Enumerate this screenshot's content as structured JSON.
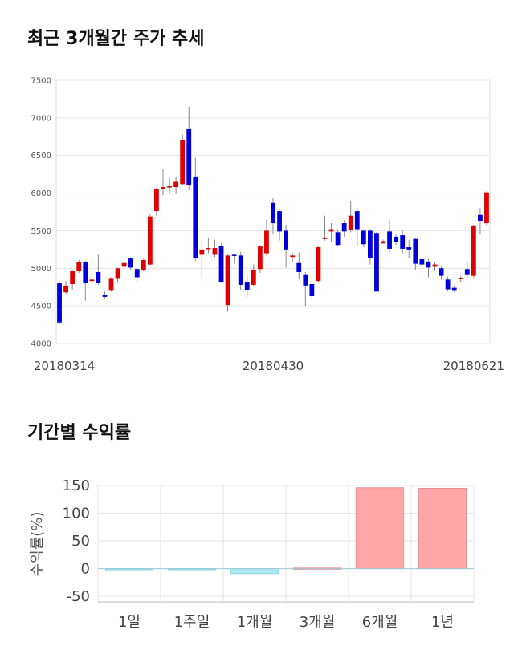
{
  "sections": {
    "stock_title": "최근 3개월간 주가 추세",
    "return_title": "기간별 수익률"
  },
  "chart_data": [
    {
      "type": "candlestick",
      "ylim": [
        4000,
        7500
      ],
      "y_ticks": [
        4000,
        4500,
        5000,
        5500,
        6000,
        6500,
        7000,
        7500
      ],
      "x_labels": [
        "20180314",
        "20180430",
        "20180621"
      ],
      "grid": true,
      "colors": {
        "up": "#e00000",
        "down": "#0000dd",
        "wick": "#888888"
      },
      "candles": [
        [
          4800,
          4280,
          4820,
          4250
        ],
        [
          4680,
          4770,
          4830,
          4660
        ],
        [
          4790,
          4960,
          4980,
          4720
        ],
        [
          4960,
          5080,
          5110,
          4940
        ],
        [
          5080,
          4800,
          5100,
          4570
        ],
        [
          4830,
          4850,
          4930,
          4800
        ],
        [
          4950,
          4800,
          5180,
          4780
        ],
        [
          4650,
          4620,
          4690,
          4600
        ],
        [
          4700,
          4860,
          4880,
          4690
        ],
        [
          4860,
          5000,
          5010,
          4820
        ],
        [
          5020,
          5070,
          5090,
          4990
        ],
        [
          5130,
          5010,
          5150,
          4980
        ],
        [
          4990,
          4880,
          5010,
          4820
        ],
        [
          4980,
          5110,
          5130,
          4960
        ],
        [
          5050,
          5690,
          5720,
          5040
        ],
        [
          5760,
          6060,
          6070,
          5700
        ],
        [
          6060,
          6080,
          6320,
          5970
        ],
        [
          6080,
          6090,
          6200,
          5990
        ],
        [
          6080,
          6150,
          6220,
          5990
        ],
        [
          6120,
          6700,
          6780,
          6100
        ],
        [
          6850,
          6110,
          7150,
          6040
        ],
        [
          6220,
          5140,
          6470,
          5100
        ],
        [
          5180,
          5250,
          5380,
          4860
        ],
        [
          5260,
          5270,
          5400,
          5200
        ],
        [
          5180,
          5270,
          5380,
          5150
        ],
        [
          5300,
          4810,
          5330,
          4810
        ],
        [
          4510,
          5170,
          5190,
          4420
        ],
        [
          5180,
          5170,
          5190,
          5060
        ],
        [
          5170,
          4780,
          5220,
          4710
        ],
        [
          4810,
          4710,
          4890,
          4620
        ],
        [
          4780,
          4980,
          5050,
          4760
        ],
        [
          4990,
          5290,
          5310,
          4940
        ],
        [
          5200,
          5500,
          5650,
          5170
        ],
        [
          5870,
          5600,
          5930,
          5450
        ],
        [
          5760,
          5490,
          5780,
          5370
        ],
        [
          5500,
          5250,
          5580,
          5010
        ],
        [
          5150,
          5170,
          5210,
          5090
        ],
        [
          5070,
          4950,
          5210,
          4850
        ],
        [
          4910,
          4770,
          4950,
          4500
        ],
        [
          4790,
          4630,
          4830,
          4570
        ],
        [
          4830,
          5280,
          5290,
          4810
        ],
        [
          5390,
          5410,
          5700,
          5370
        ],
        [
          5490,
          5520,
          5600,
          5350
        ],
        [
          5480,
          5310,
          5520,
          5300
        ],
        [
          5600,
          5490,
          5640,
          5420
        ],
        [
          5510,
          5700,
          5900,
          5480
        ],
        [
          5760,
          5520,
          5800,
          5300
        ],
        [
          5500,
          5320,
          5510,
          5280
        ],
        [
          5500,
          5140,
          5520,
          5050
        ],
        [
          5470,
          4690,
          5480,
          4690
        ],
        [
          5330,
          5360,
          5380,
          5330
        ],
        [
          5490,
          5260,
          5650,
          5210
        ],
        [
          5420,
          5350,
          5450,
          5310
        ],
        [
          5440,
          5260,
          5500,
          5200
        ],
        [
          5280,
          5250,
          5380,
          5140
        ],
        [
          5390,
          5060,
          5410,
          4980
        ],
        [
          5120,
          5050,
          5170,
          4940
        ],
        [
          5090,
          5010,
          5120,
          4880
        ],
        [
          5020,
          5050,
          5080,
          4960
        ],
        [
          5000,
          4900,
          5030,
          4850
        ],
        [
          4850,
          4720,
          4890,
          4690
        ],
        [
          4740,
          4700,
          4770,
          4680
        ],
        [
          4860,
          4870,
          4900,
          4820
        ],
        [
          4990,
          4910,
          5090,
          4870
        ],
        [
          4900,
          5560,
          5580,
          4870
        ],
        [
          5710,
          5630,
          5800,
          5450
        ],
        [
          5600,
          6010,
          6030,
          5560
        ]
      ]
    },
    {
      "type": "bar",
      "categories": [
        "1일",
        "1주일",
        "1개월",
        "3개월",
        "6개월",
        "1년"
      ],
      "values": [
        -0.5,
        -1.0,
        -9.0,
        1.0,
        146.0,
        145.0
      ],
      "ylabel": "수익률(%)",
      "ylim": [
        -60,
        150
      ],
      "y_ticks": [
        -50,
        0,
        50,
        100,
        150
      ],
      "grid": true,
      "colors": {
        "positive": "#ffa6a8",
        "negative": "#aeeaf2"
      }
    }
  ]
}
